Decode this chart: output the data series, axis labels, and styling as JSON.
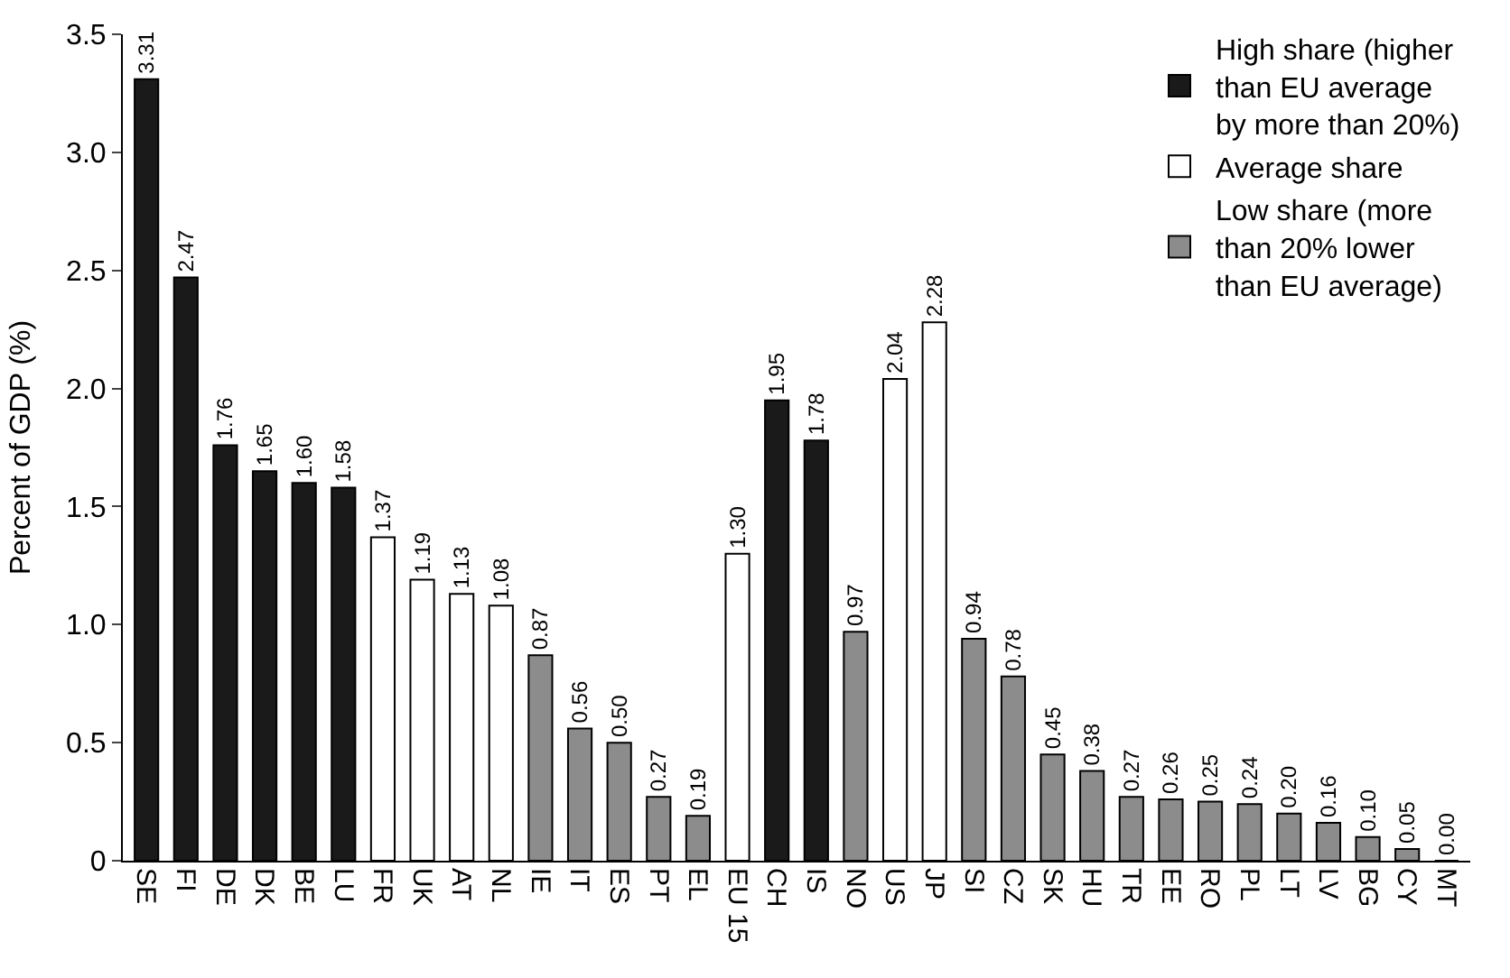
{
  "chart_data": {
    "type": "bar",
    "ylabel": "Percent of GDP (%)",
    "categories": [
      "SE",
      "FI",
      "DE",
      "DK",
      "BE",
      "LU",
      "FR",
      "UK",
      "AT",
      "NL",
      "IE",
      "IT",
      "ES",
      "PT",
      "EL",
      "EU 15",
      "CH",
      "IS",
      "NO",
      "US",
      "JP",
      "SI",
      "CZ",
      "SK",
      "HU",
      "TR",
      "EE",
      "RO",
      "PL",
      "LT",
      "LV",
      "BG",
      "CY",
      "MT"
    ],
    "series": [
      {
        "name": "High share (higher\nthan EU average\nby more than 20%)",
        "color": "#1a1a1a",
        "values": [
          3.31,
          2.47,
          1.76,
          1.65,
          1.6,
          1.58,
          null,
          null,
          null,
          null,
          null,
          null,
          null,
          null,
          null,
          null,
          1.95,
          1.78,
          null,
          null,
          null,
          null,
          null,
          null,
          null,
          null,
          null,
          null,
          null,
          null,
          null,
          null,
          null,
          null
        ],
        "value_labels": [
          "3.31",
          "2.47",
          "1.76",
          "1.65",
          "1.60",
          "1.58",
          null,
          null,
          null,
          null,
          null,
          null,
          null,
          null,
          null,
          null,
          "1.95",
          "1.78",
          null,
          null,
          null,
          null,
          null,
          null,
          null,
          null,
          null,
          null,
          null,
          null,
          null,
          null,
          null,
          null
        ]
      },
      {
        "name": "Average share",
        "color": "#ffffff",
        "values": [
          null,
          null,
          null,
          null,
          null,
          null,
          1.37,
          1.19,
          1.13,
          1.08,
          null,
          null,
          null,
          null,
          null,
          1.3,
          null,
          null,
          null,
          2.04,
          2.28,
          null,
          null,
          null,
          null,
          null,
          null,
          null,
          null,
          null,
          null,
          null,
          null,
          null
        ],
        "value_labels": [
          null,
          null,
          null,
          null,
          null,
          null,
          "1.37",
          "1.19",
          "1.13",
          "1.08",
          null,
          null,
          null,
          null,
          null,
          "1.30",
          null,
          null,
          null,
          "2.04",
          "2.28",
          null,
          null,
          null,
          null,
          null,
          null,
          null,
          null,
          null,
          null,
          null,
          null,
          null
        ]
      },
      {
        "name": "Low share (more\nthan 20% lower\nthan EU average)",
        "color": "#8c8c8c",
        "values": [
          null,
          null,
          null,
          null,
          null,
          null,
          null,
          null,
          null,
          null,
          0.87,
          0.56,
          0.5,
          0.27,
          0.19,
          null,
          null,
          null,
          0.97,
          null,
          null,
          0.94,
          0.78,
          0.45,
          0.38,
          0.27,
          0.26,
          0.25,
          0.24,
          0.2,
          0.16,
          0.1,
          0.05,
          0.0
        ],
        "value_labels": [
          null,
          null,
          null,
          null,
          null,
          null,
          null,
          null,
          null,
          null,
          "0.87",
          "0.56",
          "0.50",
          "0.27",
          "0.19",
          null,
          null,
          null,
          "0.97",
          null,
          null,
          "0.94",
          "0.78",
          "0.45",
          "0.38",
          "0.27",
          "0.26",
          "0.25",
          "0.24",
          "0.20",
          "0.16",
          "0.10",
          "0.05",
          "0.00"
        ]
      }
    ],
    "ylim": [
      0,
      3.5
    ],
    "yticks": [
      {
        "value": 0,
        "label": "0"
      },
      0.5,
      {
        "value": 1,
        "label": "1.0"
      },
      1.5,
      {
        "value": 2,
        "label": "2.0"
      },
      2.5,
      {
        "value": 3,
        "label": "3.0"
      },
      3.5
    ],
    "legend": "top right"
  }
}
